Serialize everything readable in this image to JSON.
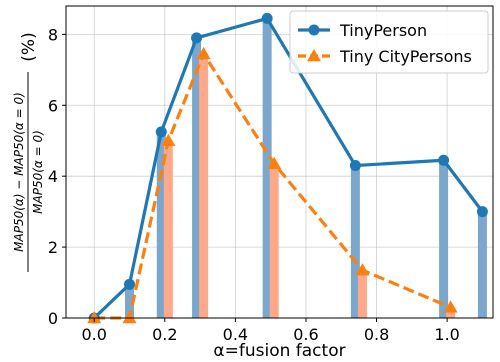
{
  "chart_data": {
    "type": "line",
    "xlabel": "α=fusion factor",
    "ylabel_parts": {
      "numerator": "MAP50(α) − MAP50(α = 0)",
      "denominator": "MAP50(α = 0)",
      "unit": "(%)"
    },
    "xlim": [
      -0.08,
      1.13
    ],
    "ylim": [
      0,
      8.8
    ],
    "xticks": [
      0.0,
      0.2,
      0.4,
      0.6,
      0.8,
      1.0
    ],
    "xtick_labels": [
      "0.0",
      "0.2",
      "0.4",
      "0.6",
      "0.8",
      "1.0"
    ],
    "yticks": [
      0,
      2,
      4,
      6,
      8
    ],
    "ytick_labels": [
      "0",
      "2",
      "4",
      "6",
      "8"
    ],
    "grid": true,
    "legend_position": "top-right",
    "series": [
      {
        "name": "TinyPerson",
        "color": "#1f77b4",
        "marker": "circle",
        "linestyle": "solid",
        "x": [
          0.0,
          0.1,
          0.19,
          0.29,
          0.49,
          0.74,
          0.99,
          1.1
        ],
        "y": [
          0.0,
          0.95,
          5.25,
          7.9,
          8.45,
          4.3,
          4.45,
          3.0
        ]
      },
      {
        "name": "Tiny CityPersons",
        "color": "#ff7f0e",
        "marker": "triangle",
        "linestyle": "dashed",
        "x": [
          0.0,
          0.1,
          0.21,
          0.31,
          0.51,
          0.76,
          1.01
        ],
        "y": [
          0.0,
          0.0,
          5.0,
          7.45,
          4.35,
          1.35,
          0.3
        ]
      }
    ]
  }
}
